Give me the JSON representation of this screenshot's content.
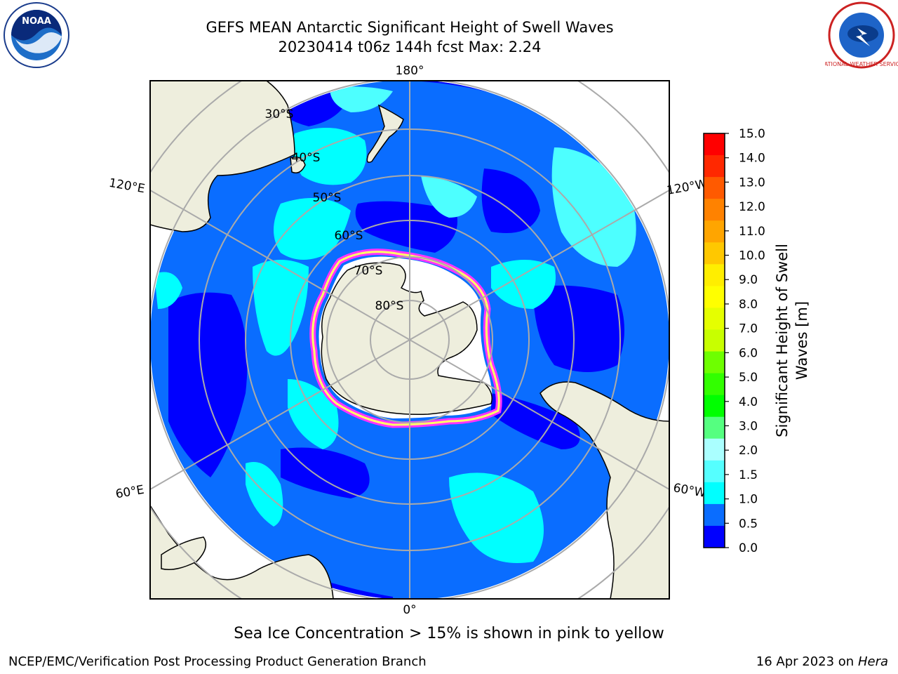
{
  "title": {
    "line1": "GEFS MEAN Antarctic Significant Height of Swell Waves",
    "line2": "20230414 t06z 144h fcst   Max: 2.24"
  },
  "logos": {
    "left": "noaa-logo",
    "left_text": "NOAA",
    "right": "nws-logo",
    "right_text": "NATIONAL WEATHER SERVICE"
  },
  "map": {
    "projection": "south-polar-stereographic",
    "longitude_labels": {
      "top": "180°",
      "bottom": "0°",
      "upper_left": "120°E",
      "lower_left": "60°E",
      "upper_right": "120°W",
      "lower_right": "60°W"
    },
    "latitude_labels": [
      "30°S",
      "40°S",
      "50°S",
      "60°S",
      "70°S",
      "80°S"
    ],
    "colors": {
      "land": "#eeeedd",
      "ocean_deep_blue": "#0000ff",
      "ocean_blue": "#0a6dff",
      "ocean_cyan": "#00ffff",
      "ocean_light_cyan": "#4dffff",
      "sea_ice_edge": "#ff33ff",
      "sea_ice_yellow": "#ffff66",
      "grid": "#aaaaaa"
    }
  },
  "colorbar": {
    "label_line1": "Significant Height of Swell",
    "label_line2": "Waves [m]",
    "ticks": [
      "15.0",
      "14.0",
      "13.0",
      "12.0",
      "11.0",
      "10.0",
      "9.0",
      "8.0",
      "7.0",
      "6.0",
      "5.0",
      "4.0",
      "3.0",
      "2.0",
      "1.5",
      "1.0",
      "0.5",
      "0.0"
    ],
    "colors_top_to_bottom": [
      "#ff0000",
      "#ff2800",
      "#ff5a00",
      "#ff8200",
      "#ffa500",
      "#ffc800",
      "#ffee00",
      "#ffff00",
      "#e5ff00",
      "#c8ff00",
      "#6eff00",
      "#32ff00",
      "#00ff00",
      "#55ff80",
      "#aaffff",
      "#55ffff",
      "#00ffff",
      "#0a6dff",
      "#0000ff"
    ]
  },
  "ice_note": "Sea Ice Concentration > 15% is shown in pink to yellow",
  "footer": {
    "left": "NCEP/EMC/Verification Post Processing Product Generation Branch",
    "right_date": "16 Apr 2023 on ",
    "right_machine": "Hera"
  }
}
